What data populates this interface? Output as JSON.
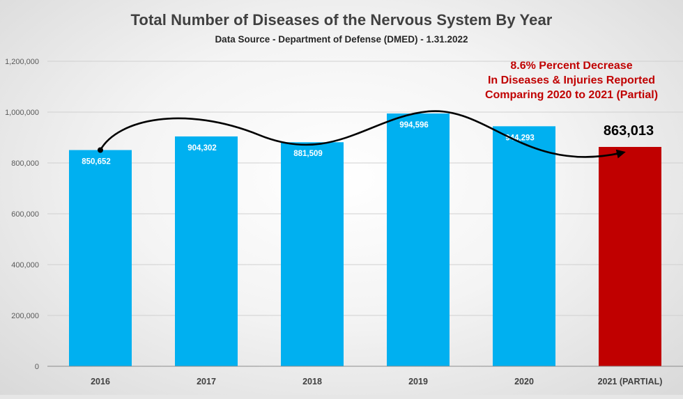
{
  "chart_data": {
    "type": "bar",
    "title": "Total Number of Diseases of the Nervous System By Year",
    "subtitle": "Data Source - Department of Defense (DMED) - 1.31.2022",
    "categories": [
      "2016",
      "2017",
      "2018",
      "2019",
      "2020",
      "2021 (PARTIAL)"
    ],
    "values": [
      850652,
      904302,
      881509,
      994596,
      944293,
      863013
    ],
    "data_labels": [
      "850,652",
      "904,302",
      "881,509",
      "994,596",
      "944,293",
      "863,013"
    ],
    "bar_colors": [
      "#00b0f0",
      "#00b0f0",
      "#00b0f0",
      "#00b0f0",
      "#00b0f0",
      "#c00000"
    ],
    "ylim": [
      0,
      1200000
    ],
    "yticks": [
      0,
      200000,
      400000,
      600000,
      800000,
      1000000,
      1200000
    ],
    "ytick_labels": [
      "0",
      "200,000",
      "400,000",
      "600,000",
      "800,000",
      "1,000,000",
      "1,200,000"
    ],
    "xlabel": "",
    "ylabel": "",
    "grid": true,
    "annotation": {
      "lines": [
        "8.6% Percent Decrease",
        "In Diseases & Injuries Reported",
        "Comparing 2020 to 2021 (Partial)"
      ],
      "color": "#c00000"
    },
    "trend_arrow": {
      "color": "#000000",
      "from_category": "2016",
      "to_category": "2021 (PARTIAL)"
    }
  }
}
